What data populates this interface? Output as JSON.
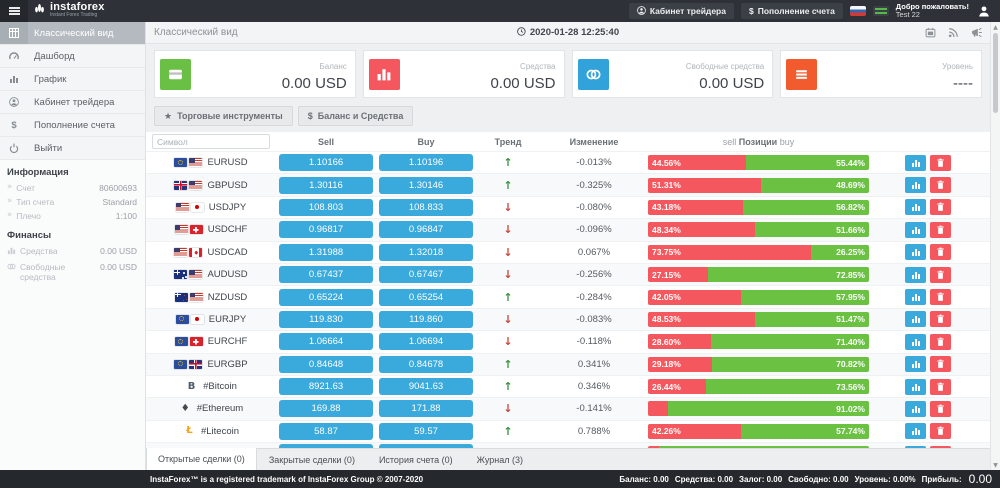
{
  "topbar": {
    "brand": "instaforex",
    "brand_sub": "Instant Forex Trading",
    "cabinet_button": "Кабинет трейдера",
    "deposit_button": "Пополнение счета",
    "welcome_line1": "Добро пожаловать!",
    "welcome_line2": "Test 22"
  },
  "sidebar": {
    "menu": [
      {
        "label": "Классический вид",
        "icon": "grid-icon",
        "active": true
      },
      {
        "label": "Дашборд",
        "icon": "gauge-icon",
        "active": false
      },
      {
        "label": "График",
        "icon": "bar-chart-icon",
        "active": false
      },
      {
        "label": "Кабинет трейдера",
        "icon": "user-icon",
        "active": false
      },
      {
        "label": "Пополнение счета",
        "icon": "dollar-icon",
        "active": false
      },
      {
        "label": "Выйти",
        "icon": "power-icon",
        "active": false
      }
    ],
    "info_header": "Информация",
    "info_rows": [
      {
        "icon": "chevron-right-icon",
        "label": "Счет",
        "value": "80600693"
      },
      {
        "icon": "chevron-right-icon",
        "label": "Тип счета",
        "value": "Standard"
      },
      {
        "icon": "chevron-right-icon",
        "label": "Плечо",
        "value": "1:100"
      }
    ],
    "finance_header": "Финансы",
    "finance_rows": [
      {
        "icon": "chart-mini-icon",
        "label": "Средства",
        "value": "0.00 USD"
      },
      {
        "icon": "coins-mini-icon",
        "label": "Свободные средства",
        "value": "0.00 USD"
      }
    ]
  },
  "main": {
    "page_title": "Классический вид",
    "timestamp": "2020-01-28 12:25:40",
    "cards": [
      {
        "icon": "credit-card-icon",
        "label": "Баланс",
        "value": "0.00 USD",
        "color": "#6abf45"
      },
      {
        "icon": "bar-chart-icon",
        "label": "Средства",
        "value": "0.00 USD",
        "color": "#f4575d"
      },
      {
        "icon": "coins-icon",
        "label": "Свободные средства",
        "value": "0.00 USD",
        "color": "#31a3da"
      },
      {
        "icon": "list-icon",
        "label": "Уровень",
        "value": "----",
        "color": "#f15b2e"
      }
    ],
    "toolbar": [
      {
        "icon": "star-icon",
        "label": "Торговые инструменты"
      },
      {
        "icon": "dollar-icon",
        "label": "Баланс и Средства"
      }
    ],
    "table": {
      "symbol_placeholder": "Символ",
      "col_sell": "Sell",
      "col_buy": "Buy",
      "col_trend": "Тренд",
      "col_change": "Изменение",
      "pos_sell": "sell",
      "pos_label": "Позиции",
      "pos_buy": "buy",
      "colors": {
        "price_button": "#3aa9dc",
        "bar_sell": "#f4575e",
        "bar_buy": "#6ac142"
      },
      "rows": [
        {
          "symbol": "EURUSD",
          "flags": [
            "eu",
            "us"
          ],
          "sell": "1.10166",
          "buy": "1.10196",
          "trend": "up",
          "change": "-0.013%",
          "sell_pct": 44.56,
          "sell_label": "44.56%",
          "buy_pct": 55.44,
          "buy_label": "55.44%"
        },
        {
          "symbol": "GBPUSD",
          "flags": [
            "gb",
            "us"
          ],
          "sell": "1.30116",
          "buy": "1.30146",
          "trend": "up",
          "change": "-0.325%",
          "sell_pct": 51.31,
          "sell_label": "51.31%",
          "buy_pct": 48.69,
          "buy_label": "48.69%"
        },
        {
          "symbol": "USDJPY",
          "flags": [
            "us",
            "jp"
          ],
          "sell": "108.803",
          "buy": "108.833",
          "trend": "down",
          "change": "-0.080%",
          "sell_pct": 43.18,
          "sell_label": "43.18%",
          "buy_pct": 56.82,
          "buy_label": "56.82%"
        },
        {
          "symbol": "USDCHF",
          "flags": [
            "us",
            "ch"
          ],
          "sell": "0.96817",
          "buy": "0.96847",
          "trend": "down",
          "change": "-0.096%",
          "sell_pct": 48.34,
          "sell_label": "48.34%",
          "buy_pct": 51.66,
          "buy_label": "51.66%"
        },
        {
          "symbol": "USDCAD",
          "flags": [
            "us",
            "ca"
          ],
          "sell": "1.31988",
          "buy": "1.32018",
          "trend": "down",
          "change": "0.067%",
          "sell_pct": 73.75,
          "sell_label": "73.75%",
          "buy_pct": 26.25,
          "buy_label": "26.25%"
        },
        {
          "symbol": "AUDUSD",
          "flags": [
            "au",
            "us"
          ],
          "sell": "0.67437",
          "buy": "0.67467",
          "trend": "down",
          "change": "-0.256%",
          "sell_pct": 27.15,
          "sell_label": "27.15%",
          "buy_pct": 72.85,
          "buy_label": "72.85%"
        },
        {
          "symbol": "NZDUSD",
          "flags": [
            "nz",
            "us"
          ],
          "sell": "0.65224",
          "buy": "0.65254",
          "trend": "up",
          "change": "-0.284%",
          "sell_pct": 42.05,
          "sell_label": "42.05%",
          "buy_pct": 57.95,
          "buy_label": "57.95%"
        },
        {
          "symbol": "EURJPY",
          "flags": [
            "eu",
            "jp"
          ],
          "sell": "119.830",
          "buy": "119.860",
          "trend": "down",
          "change": "-0.083%",
          "sell_pct": 48.53,
          "sell_label": "48.53%",
          "buy_pct": 51.47,
          "buy_label": "51.47%"
        },
        {
          "symbol": "EURCHF",
          "flags": [
            "eu",
            "ch"
          ],
          "sell": "1.06664",
          "buy": "1.06694",
          "trend": "down",
          "change": "-0.118%",
          "sell_pct": 28.6,
          "sell_label": "28.60%",
          "buy_pct": 71.4,
          "buy_label": "71.40%"
        },
        {
          "symbol": "EURGBP",
          "flags": [
            "eu",
            "gb"
          ],
          "sell": "0.84648",
          "buy": "0.84678",
          "trend": "up",
          "change": "0.341%",
          "sell_pct": 29.18,
          "sell_label": "29.18%",
          "buy_pct": 70.82,
          "buy_label": "70.82%"
        },
        {
          "symbol": "#Bitcoin",
          "crypto": "btc",
          "sell": "8921.63",
          "buy": "9041.63",
          "trend": "up",
          "change": "0.346%",
          "sell_pct": 26.44,
          "sell_label": "26.44%",
          "buy_pct": 73.56,
          "buy_label": "73.56%"
        },
        {
          "symbol": "#Ethereum",
          "crypto": "eth",
          "sell": "169.88",
          "buy": "171.88",
          "trend": "down",
          "change": "-0.141%",
          "sell_pct": 8.98,
          "sell_label": "",
          "buy_pct": 91.02,
          "buy_label": "91.02%"
        },
        {
          "symbol": "#Litecoin",
          "crypto": "ltc",
          "sell": "58.87",
          "buy": "59.57",
          "trend": "up",
          "change": "0.788%",
          "sell_pct": 42.26,
          "sell_label": "42.26%",
          "buy_pct": 57.74,
          "buy_label": "57.74%"
        },
        {
          "symbol": "",
          "crypto": "generic",
          "sell": "",
          "buy": "",
          "trend": "down",
          "change": "",
          "sell_pct": 5,
          "sell_label": "",
          "buy_pct": 95,
          "buy_label": ""
        }
      ]
    },
    "tabs": [
      {
        "label": "Открытые сделки (0)",
        "active": true
      },
      {
        "label": "Закрытые сделки (0)",
        "active": false
      },
      {
        "label": "История счета (0)",
        "active": false
      },
      {
        "label": "Журнал (3)",
        "active": false
      }
    ]
  },
  "footer": {
    "left": "InstaForex™ is a registered trademark of InstaForex Group © 2007-2020",
    "stats": [
      {
        "label": "Баланс:",
        "value": "0.00",
        "big": false
      },
      {
        "label": "Средства:",
        "value": "0.00",
        "big": false
      },
      {
        "label": "Залог:",
        "value": "0.00",
        "big": false
      },
      {
        "label": "Свободно:",
        "value": "0.00",
        "big": false
      },
      {
        "label": "Уровень:",
        "value": "0.00%",
        "big": false
      },
      {
        "label": "Прибыль:",
        "value": "0.00",
        "big": true
      }
    ]
  }
}
